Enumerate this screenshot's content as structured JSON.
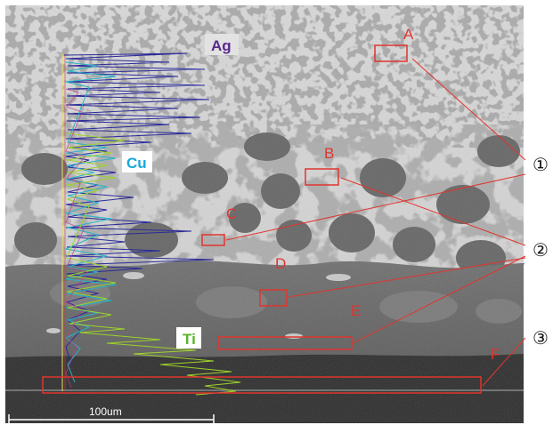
{
  "image": {
    "elements": [
      {
        "name": "ag",
        "label": "Ag",
        "color": "#5a2a8c"
      },
      {
        "name": "cu",
        "label": "Cu",
        "color": "#1aa8d8"
      },
      {
        "name": "ti",
        "label": "Ti",
        "color": "#5ab52a"
      }
    ],
    "regions": [
      "A",
      "B",
      "C",
      "D",
      "E",
      "F"
    ],
    "callouts": [
      "①",
      "②",
      "③"
    ],
    "scale_bar": "100um",
    "colors": {
      "box": "#e0352e",
      "ag_line": "#2b2a9a",
      "cu_line": "#24b4c8",
      "ti_line": "#9ed22a",
      "light_phase": "#d6d6d6",
      "dark_phase": "#6a6a6a",
      "substrate": "#2e2e2e"
    }
  }
}
